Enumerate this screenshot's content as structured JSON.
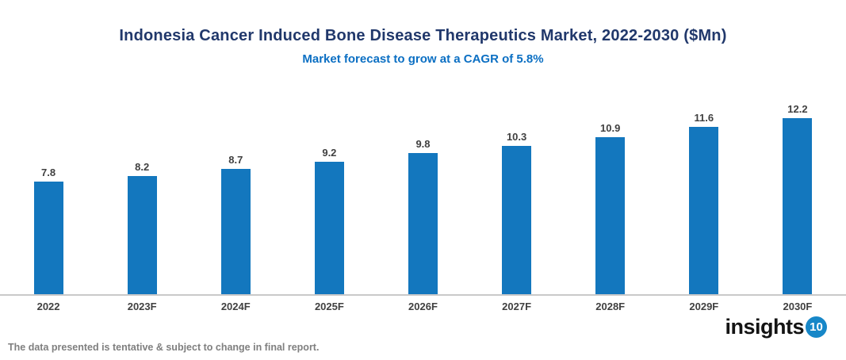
{
  "header": {
    "title": "Indonesia Cancer Induced Bone Disease Therapeutics Market, 2022-2030 ($Mn)",
    "subtitle": "Market forecast to grow at a CAGR of 5.8%"
  },
  "chart_data": {
    "type": "bar",
    "categories": [
      "2022",
      "2023F",
      "2024F",
      "2025F",
      "2026F",
      "2027F",
      "2028F",
      "2029F",
      "2030F"
    ],
    "values": [
      7.8,
      8.2,
      8.7,
      9.2,
      9.8,
      10.3,
      10.9,
      11.6,
      12.2
    ],
    "title": "Indonesia Cancer Induced Bone Disease Therapeutics Market, 2022-2030 ($Mn)",
    "subtitle": "Market forecast to grow at a CAGR of 5.8%",
    "xlabel": "",
    "ylabel": "",
    "ylim": [
      0,
      13
    ],
    "grid": false,
    "legend": "none",
    "value_labels": true,
    "bar_color": "#1377BE"
  },
  "footer": {
    "note": "The data presented is tentative & subject to change in final report.",
    "logo_text": "insights",
    "logo_badge": "10"
  },
  "colors": {
    "title": "#21386B",
    "subtitle": "#0B6FC3",
    "bar": "#1377BE",
    "data_label": "#404040",
    "axis_line": "#C9C9C9",
    "footer_note": "#7F7F7F",
    "logo_badge_bg": "#1787C8"
  }
}
